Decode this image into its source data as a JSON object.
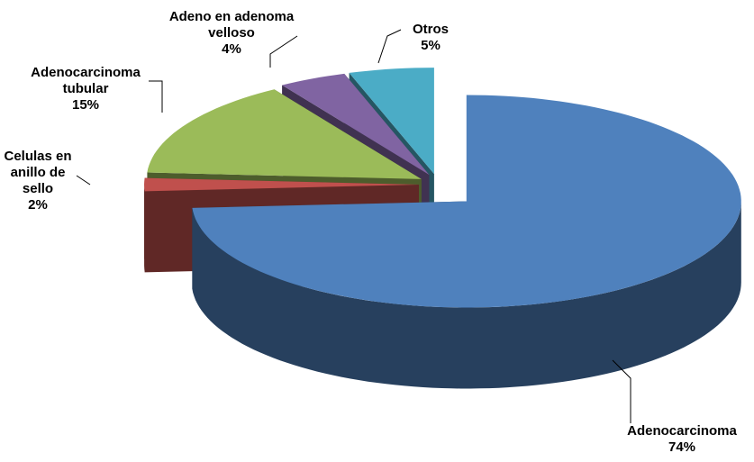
{
  "chart_data": {
    "type": "pie",
    "is_3d": true,
    "categories": [
      "Adenocarcinoma",
      "Celulas en anillo de sello",
      "Adenocarcinoma tubular",
      "Adeno en adenoma velloso",
      "Otros"
    ],
    "values": [
      74,
      2,
      15,
      4,
      5
    ],
    "value_labels": [
      "74%",
      "2%",
      "15%",
      "4%",
      "5%"
    ],
    "colors": [
      "#4f81bd",
      "#c0504d",
      "#9bbb59",
      "#8064a2",
      "#4bacc6"
    ]
  }
}
